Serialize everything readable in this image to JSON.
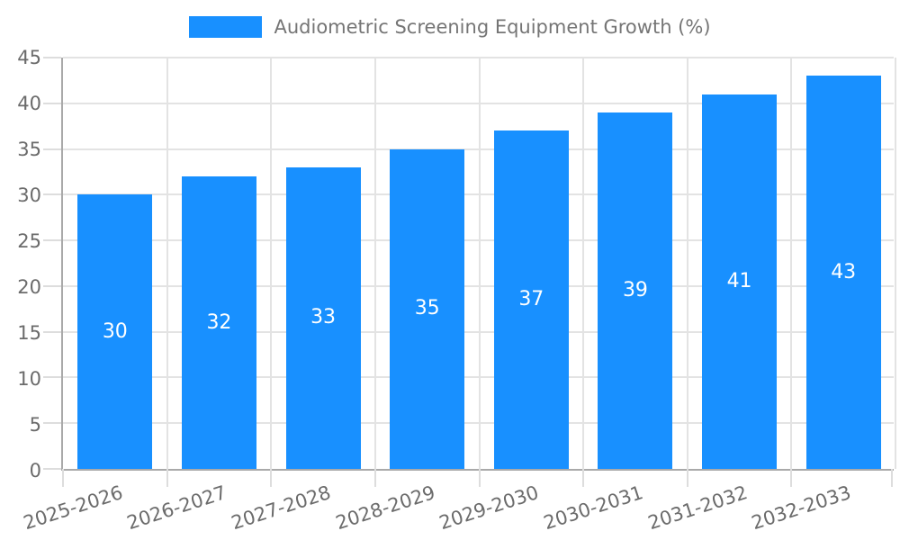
{
  "legend": {
    "label": "Audiometric Screening Equipment Growth (%)"
  },
  "chart_data": {
    "type": "bar",
    "title": "",
    "categories": [
      "2025-2026",
      "2026-2027",
      "2027-2028",
      "2028-2029",
      "2029-2030",
      "2030-2031",
      "2031-2032",
      "2032-2033"
    ],
    "values": [
      30,
      32,
      33,
      35,
      37,
      39,
      41,
      43
    ],
    "series": [
      {
        "name": "Audiometric Screening Equipment Growth (%)",
        "values": [
          30,
          32,
          33,
          35,
          37,
          39,
          41,
          43
        ]
      }
    ],
    "xlabel": "",
    "ylabel": "",
    "ylim": [
      0,
      45
    ],
    "ytick_step": 5,
    "yticks": [
      0,
      5,
      10,
      15,
      20,
      25,
      30,
      35,
      40,
      45
    ],
    "grid": true,
    "legend_position": "top",
    "value_labels_shown": true,
    "colors": {
      "bar": "#1890FF",
      "axis_line": "#a9a9a9",
      "gridline": "#e3e3e3",
      "tick": "#dddddd",
      "tick_label_text": "#6b6b6b",
      "legend_text": "#757575",
      "value_label_text": "#ffffff"
    }
  }
}
